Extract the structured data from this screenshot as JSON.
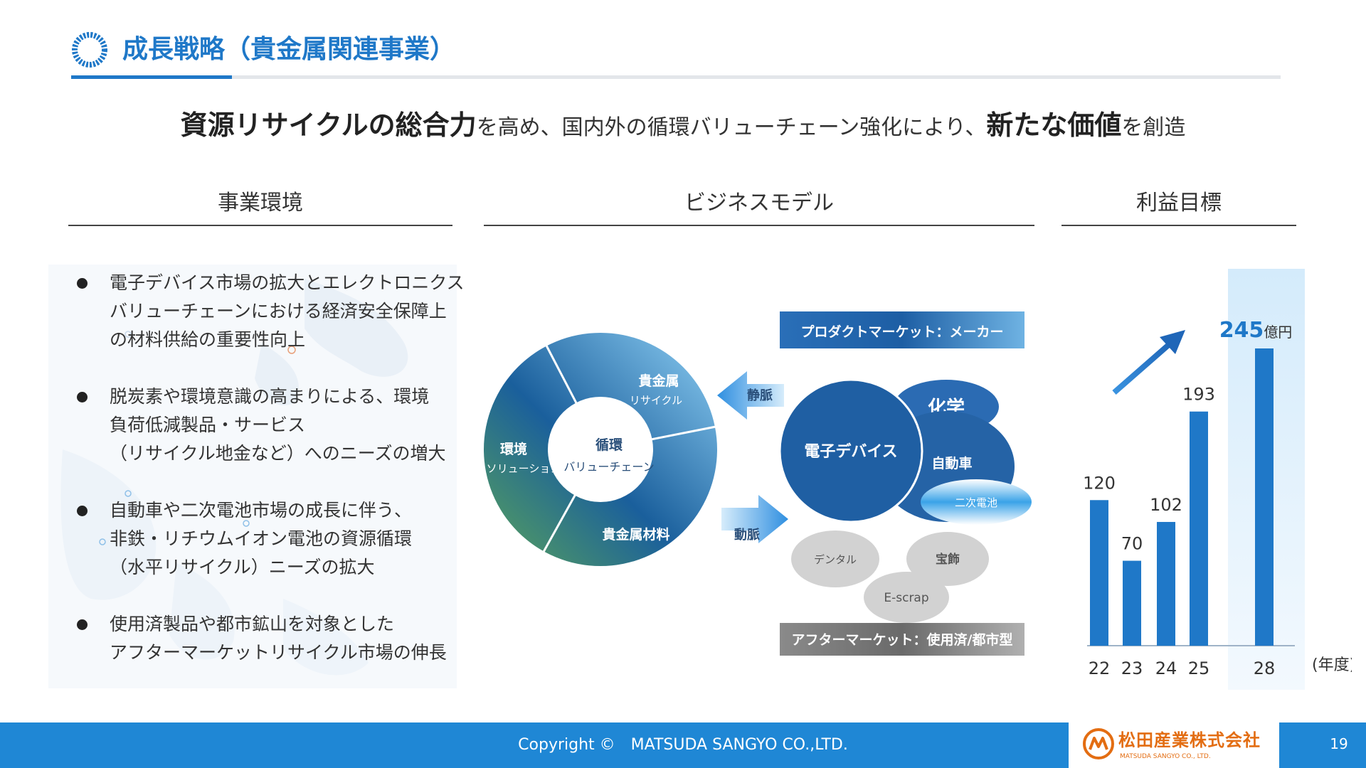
{
  "header": {
    "title": "成長戦略（貴金属関連事業）",
    "accent_color": "#1f78c8"
  },
  "tagline": {
    "part1_bold": "資源リサイクルの総合力",
    "part2": "を高め、国内外の循環バリューチェーン強化により、",
    "part3_bold": "新たな価値",
    "part4": "を創造"
  },
  "sections": {
    "environment": "事業環境",
    "business_model": "ビジネスモデル",
    "profit_target": "利益目標"
  },
  "environment": {
    "items": [
      {
        "lines": [
          "電子デバイス市場の拡大とエレクトロニクス",
          "バリューチェーンにおける経済安全保障上",
          "の材料供給の重要性向上"
        ]
      },
      {
        "lines": [
          "脱炭素や環境意識の高まりによる、環境",
          "負荷低減製品・サービス",
          "（リサイクル地金など）へのニーズの増大"
        ]
      },
      {
        "lines": [
          "自動車や二次電池市場の成長に伴う、",
          "非鉄・リチウムイオン電池の資源循環",
          "（水平リサイクル）ニーズの拡大"
        ]
      },
      {
        "lines": [
          "使用済製品や都市鉱山を対象とした",
          "アフターマーケットリサイクル市場の伸長"
        ]
      }
    ]
  },
  "business_model": {
    "ring_center": [
      "循環",
      "バリューチェーン"
    ],
    "segments": {
      "precious_recycle": [
        "貴金属",
        "リサイクル"
      ],
      "env_solution": [
        "環境",
        "ソリューション"
      ],
      "precious_material": "貴金属材料"
    },
    "arrow_upper": "静脈",
    "arrow_lower": "動脈",
    "product_market": "プロダクトマーケット：メーカー",
    "after_market": "アフターマーケット：使用済/都市型",
    "markets": {
      "electronic": "電子デバイス",
      "chemical": "化学",
      "auto": "自動車",
      "battery": "二次電池",
      "dental": "デンタル",
      "jewelry": "宝飾",
      "escrap": "E-scrap"
    }
  },
  "chart_data": {
    "type": "bar",
    "categories": [
      "22",
      "23",
      "24",
      "25",
      "28"
    ],
    "values": [
      120,
      70,
      102,
      193,
      245
    ],
    "value_labels": [
      "120",
      "70",
      "102",
      "193",
      "245"
    ],
    "highlight_unit": "億円",
    "x_unit": "(年度)",
    "ylim": [
      0,
      245
    ],
    "bar_color": "#1f78c8",
    "highlight_label_color": "#1f78c8"
  },
  "footer": {
    "copyright": "Copyright ©　MATSUDA SANGYO CO.,LTD.",
    "company_name": "松田産業株式会社",
    "company_sub": "MATSUDA SANGYO CO., LTD.",
    "page_number": "19"
  }
}
